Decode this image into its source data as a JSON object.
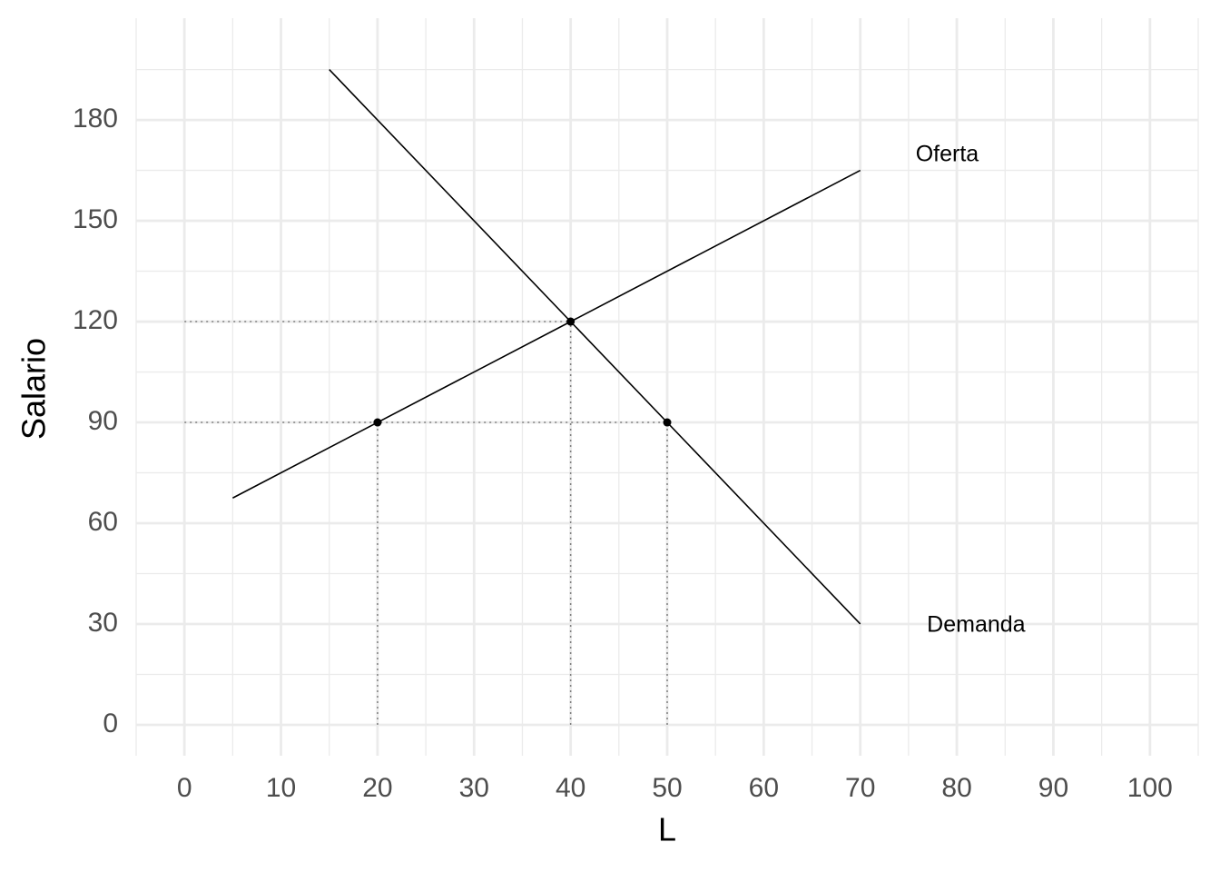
{
  "chart_data": {
    "type": "line",
    "xlabel": "L",
    "ylabel": "Salario",
    "xlim": [
      -5,
      105
    ],
    "ylim": [
      -9.2,
      210.3
    ],
    "xticks": [
      0,
      10,
      20,
      30,
      40,
      50,
      60,
      70,
      80,
      90,
      100
    ],
    "yticks": [
      0,
      30,
      60,
      90,
      120,
      150,
      180
    ],
    "xminor_ticks": [
      -5,
      5,
      15,
      25,
      35,
      45,
      55,
      65,
      75,
      85,
      95,
      105
    ],
    "yminor_ticks": [
      15,
      45,
      75,
      105,
      135,
      165,
      195
    ],
    "grid": true,
    "series": [
      {
        "x": [
          5,
          70
        ],
        "values": [
          67.5,
          165
        ],
        "color": "#000000"
      },
      {
        "x": [
          15,
          70
        ],
        "values": [
          195,
          30
        ],
        "color": "#000000"
      }
    ],
    "points": {
      "x": [
        20,
        40,
        50
      ],
      "values": [
        90,
        120,
        90
      ],
      "color": "#000000"
    },
    "segments": [
      {
        "x": [
          0,
          40
        ],
        "values": [
          120,
          120
        ]
      },
      {
        "x": [
          0,
          50
        ],
        "values": [
          90,
          90
        ]
      },
      {
        "x": [
          20,
          20
        ],
        "values": [
          0,
          90
        ]
      },
      {
        "x": [
          40,
          40
        ],
        "values": [
          0,
          120
        ]
      },
      {
        "x": [
          50,
          50
        ],
        "values": [
          0,
          90
        ]
      }
    ],
    "annotations": [
      {
        "text": "Oferta",
        "x": 79,
        "y": 169.5
      },
      {
        "text": "Demanda",
        "x": 82,
        "y": 29.5
      }
    ]
  }
}
